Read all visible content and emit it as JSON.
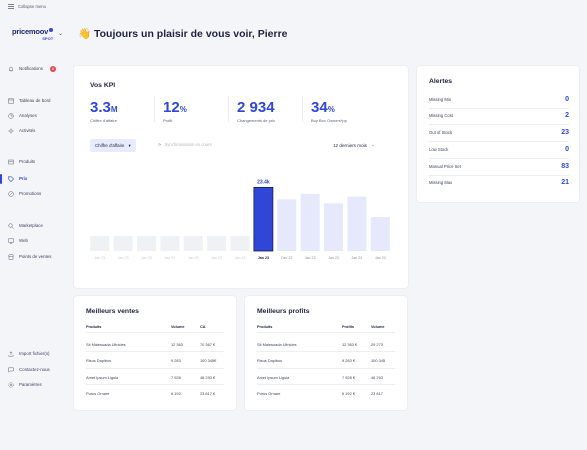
{
  "sidebar": {
    "collapse_label": "Collapse menu",
    "logo": {
      "brand": "pricemoov",
      "sub": "SPOT"
    },
    "notifications": {
      "label": "Notifications",
      "count": "8"
    },
    "items": [
      {
        "label": "Tableau de bord"
      },
      {
        "label": "Analyses"
      },
      {
        "label": "Activités"
      },
      {
        "label": "Produits"
      },
      {
        "label": "Prix"
      },
      {
        "label": "Promotions"
      },
      {
        "label": "Marketplace"
      },
      {
        "label": "Web"
      },
      {
        "label": "Points de ventes"
      }
    ],
    "bottom": [
      {
        "label": "Import fichier(s)"
      },
      {
        "label": "Contactez-nous"
      },
      {
        "label": "Paramètres"
      }
    ]
  },
  "header": {
    "wave": "👋",
    "greeting": "Toujours un plaisir de vous voir, Pierre"
  },
  "kpi": {
    "title": "Vos KPI",
    "items": [
      {
        "value": "3.3",
        "unit": "M",
        "label": "Chiffre d'affaire"
      },
      {
        "value": "12",
        "unit": "%",
        "label": "Profit"
      },
      {
        "value": "2 934",
        "unit": "",
        "label": "Changements de prix"
      },
      {
        "value": "34",
        "unit": "%",
        "label": "Buy Box Owners*pp"
      }
    ],
    "metric_dropdown": "Chiffre d'affaire",
    "sync_label": "Synchronisation en cours",
    "period_dropdown": "12 derniers mois"
  },
  "chart_data": {
    "type": "bar",
    "categories": [
      "Jan 23",
      "Jan 23",
      "Jan 23",
      "Jan 23",
      "Jan 23",
      "Jan 23",
      "Jan 23",
      "Jan 23",
      "Dec 22",
      "Jan 23",
      "Jan 23",
      "Jan 23",
      "Jan 23"
    ],
    "values": [
      5.5,
      5.5,
      5.5,
      5.5,
      5.5,
      5.5,
      5.5,
      23.4,
      19,
      21,
      17.5,
      20,
      12.5
    ],
    "highlight_index": 7,
    "highlight_label": "23.4k",
    "ylim": [
      0,
      25
    ],
    "colors": {
      "faded": "#f0f1f5",
      "highlight": "#2f46d6",
      "future": "#e6e9fb"
    }
  },
  "alerts": {
    "title": "Alertes",
    "rows": [
      {
        "label": "Missing Min",
        "value": "0"
      },
      {
        "label": "Missing Cost",
        "value": "2"
      },
      {
        "label": "Out of Stock",
        "value": "23"
      },
      {
        "label": "Low Stock",
        "value": "0"
      },
      {
        "label": "Manual Price Set",
        "value": "83"
      },
      {
        "label": "Missing Max",
        "value": "21"
      }
    ]
  },
  "best_sales": {
    "title": "Meilleurs ventes",
    "headers": [
      "Produits",
      "Volume",
      "CA"
    ],
    "rows": [
      [
        "Sit Malesuada Ultricies",
        "12 363",
        "70 367 €"
      ],
      [
        "Risus Dapibus",
        "9 283",
        "100 345€"
      ],
      [
        "Amet Ipsum Ligula",
        "7 928",
        "46 293 €"
      ],
      [
        "Purus Ornare",
        "6 192",
        "23 817 €"
      ]
    ]
  },
  "best_profits": {
    "title": "Meilleurs profits",
    "headers": [
      "Produits",
      "Profits",
      "Volume"
    ],
    "rows": [
      [
        "Sit Malesuada Ultricies",
        "12 363 €",
        "29 273"
      ],
      [
        "Risus Dapibus",
        "9 283 €",
        "100 345"
      ],
      [
        "Amet Ipsum Ligula",
        "7 928 €",
        "46 293"
      ],
      [
        "Purus Ornare",
        "6 192 €",
        "23 817"
      ]
    ]
  }
}
